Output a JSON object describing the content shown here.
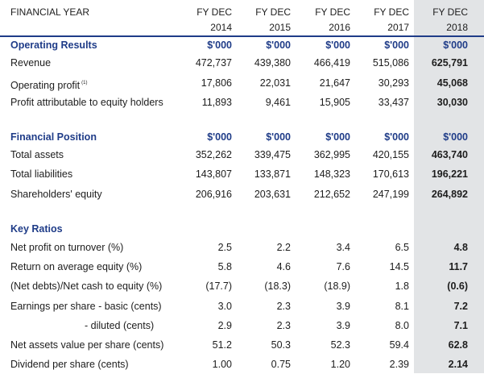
{
  "header": {
    "title": "FINANCIAL YEAR",
    "years_line1": [
      "FY DEC",
      "FY DEC",
      "FY DEC",
      "FY DEC",
      "FY DEC"
    ],
    "years_line2": [
      "2014",
      "2015",
      "2016",
      "2017",
      "2018"
    ]
  },
  "operating": {
    "section": "Operating Results",
    "units": [
      "$'000",
      "$'000",
      "$'000",
      "$'000",
      "$'000"
    ],
    "rows": [
      {
        "label": "Revenue",
        "values": [
          "472,737",
          "439,380",
          "466,419",
          "515,086",
          "625,791"
        ]
      },
      {
        "label": "Operating profit",
        "note": "(1)",
        "values": [
          "17,806",
          "22,031",
          "21,647",
          "30,293",
          "45,068"
        ]
      },
      {
        "label": "Profit attributable to equity holders",
        "values": [
          "11,893",
          "9,461",
          "15,905",
          "33,437",
          "30,030"
        ]
      }
    ]
  },
  "position": {
    "section": "Financial Position",
    "units": [
      "$'000",
      "$'000",
      "$'000",
      "$'000",
      "$'000"
    ],
    "rows": [
      {
        "label": "Total assets",
        "values": [
          "352,262",
          "339,475",
          "362,995",
          "420,155",
          "463,740"
        ]
      },
      {
        "label": "Total liabilities",
        "values": [
          "143,807",
          "133,871",
          "148,323",
          "170,613",
          "196,221"
        ]
      },
      {
        "label": "Shareholders' equity",
        "values": [
          "206,916",
          "203,631",
          "212,652",
          "247,199",
          "264,892"
        ]
      }
    ]
  },
  "ratios": {
    "section": "Key Ratios",
    "rows": [
      {
        "label": "Net profit on turnover (%)",
        "values": [
          "2.5",
          "2.2",
          "3.4",
          "6.5",
          "4.8"
        ]
      },
      {
        "label": "Return on average equity (%)",
        "values": [
          "5.8",
          "4.6",
          "7.6",
          "14.5",
          "11.7"
        ]
      },
      {
        "label": "(Net debts)/Net cash to equity (%)",
        "values": [
          "(17.7)",
          "(18.3)",
          "(18.9)",
          "1.8",
          "(0.6)"
        ]
      },
      {
        "label": "Earnings per share - basic (cents)",
        "values": [
          "3.0",
          "2.3",
          "3.9",
          "8.1",
          "7.2"
        ]
      },
      {
        "label": "- diluted (cents)",
        "values": [
          "2.9",
          "2.3",
          "3.9",
          "8.0",
          "7.1"
        ]
      },
      {
        "label": "Net assets value per share (cents)",
        "values": [
          "51.2",
          "50.3",
          "52.3",
          "59.4",
          "62.8"
        ]
      },
      {
        "label": "Dividend per share (cents)",
        "values": [
          "1.00",
          "0.75",
          "1.20",
          "2.39",
          "2.14"
        ]
      }
    ]
  },
  "colors": {
    "accent": "#1f3c88",
    "highlight_column": "#e2e4e6"
  }
}
